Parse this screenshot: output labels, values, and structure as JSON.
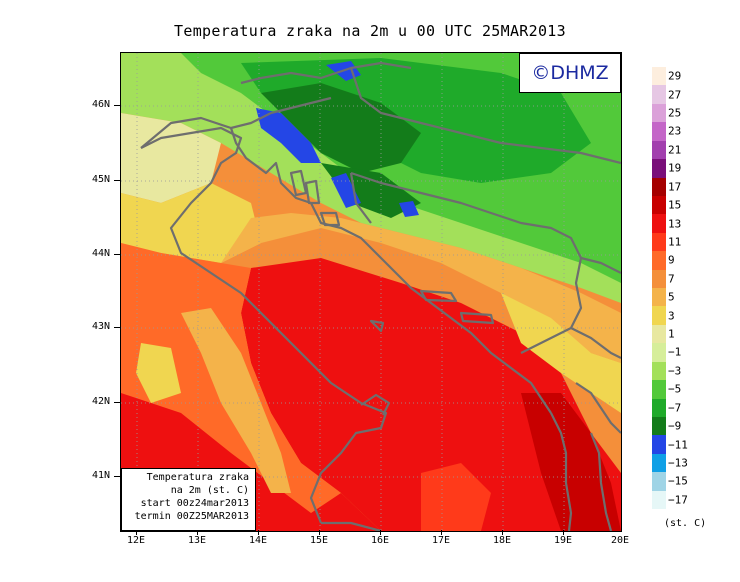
{
  "title": "Temperatura zraka na 2m u 00 UTC 25MAR2013",
  "logo": "©DHMZ",
  "info_box": {
    "line1": "Temperatura zraka",
    "line2": "na 2m (st. C)",
    "line3": "start 00z24mar2013",
    "line4": "termin 00Z25MAR2013"
  },
  "lat_labels": [
    "46N",
    "45N",
    "44N",
    "43N",
    "42N",
    "41N"
  ],
  "lon_labels": [
    "12E",
    "13E",
    "14E",
    "15E",
    "16E",
    "17E",
    "18E",
    "19E",
    "20E"
  ],
  "legend": {
    "unit": "(st. C)",
    "labels": [
      "29",
      "27",
      "25",
      "23",
      "21",
      "19",
      "17",
      "15",
      "13",
      "11",
      "9",
      "7",
      "5",
      "3",
      "1",
      "−1",
      "−3",
      "−5",
      "−7",
      "−9",
      "−11",
      "−13",
      "−15",
      "−17"
    ],
    "colors": [
      "#fdeede",
      "#e6c7e4",
      "#dba1d9",
      "#c466c8",
      "#a23fae",
      "#7a0f7a",
      "#a50000",
      "#c80000",
      "#ee1010",
      "#ff3a1a",
      "#ff6a28",
      "#f48f3a",
      "#f4b34a",
      "#f0d650",
      "#e8e8a0",
      "#d6ee9a",
      "#a3e05a",
      "#52c93a",
      "#1faa2a",
      "#137c1a",
      "#2446e6",
      "#10a0e6",
      "#9fd4e6",
      "#e6f7f7"
    ]
  },
  "colors": {
    "coastline": "#6e6e6e",
    "grid": "#9a9a9a",
    "logo_text": "#1b2aa0"
  }
}
